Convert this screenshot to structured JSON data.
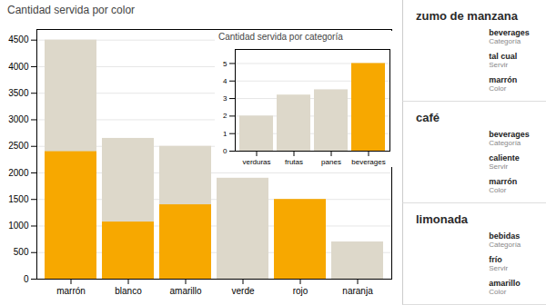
{
  "chart_data": [
    {
      "type": "bar",
      "title": "Cantidad servida por color",
      "categories": [
        "marrón",
        "blanco",
        "amarillo",
        "verde",
        "rojo",
        "naranja"
      ],
      "series": [
        {
          "color": "#ddd8ca",
          "values": [
            4500,
            2650,
            2500,
            1900,
            1500,
            700
          ]
        },
        {
          "color": "#f7a800",
          "values": [
            2400,
            1075,
            1400,
            0,
            1500,
            0
          ]
        }
      ],
      "stacked": false,
      "ylim": [
        0,
        4700
      ],
      "yticks": [
        0,
        500,
        1000,
        1500,
        2000,
        2500,
        3000,
        3500,
        4000,
        4500
      ],
      "grid": true,
      "annotations": [
        {
          "title": "zumo de manzana",
          "fields": [
            {
              "text": "beverages",
              "label": "Categoría"
            },
            {
              "text": "tal cual",
              "label": "Servir"
            },
            {
              "text": "marrón",
              "label": "Color"
            }
          ]
        },
        {
          "title": "café",
          "fields": [
            {
              "text": "beverages",
              "label": "Categoría"
            },
            {
              "text": "caliente",
              "label": "Servir"
            },
            {
              "text": "marrón",
              "label": "Color"
            }
          ]
        },
        {
          "title": "limonada",
          "fields": [
            {
              "text": "bebidas",
              "label": "Categoría"
            },
            {
              "text": "frío",
              "label": "Servir"
            },
            {
              "text": "amarillo",
              "label": "Color"
            }
          ]
        }
      ]
    },
    {
      "type": "bar",
      "title": "Cantidad servida por categoría",
      "categories": [
        "verduras",
        "frutas",
        "panes",
        "beverages"
      ],
      "values": [
        2,
        3.2,
        3.5,
        5
      ],
      "colors": [
        "#ddd8ca",
        "#ddd8ca",
        "#ddd8ca",
        "#f7a800"
      ],
      "ylim": [
        0,
        5.8
      ],
      "yticks": [
        0,
        1,
        2,
        3,
        4,
        5
      ],
      "grid": true
    }
  ]
}
